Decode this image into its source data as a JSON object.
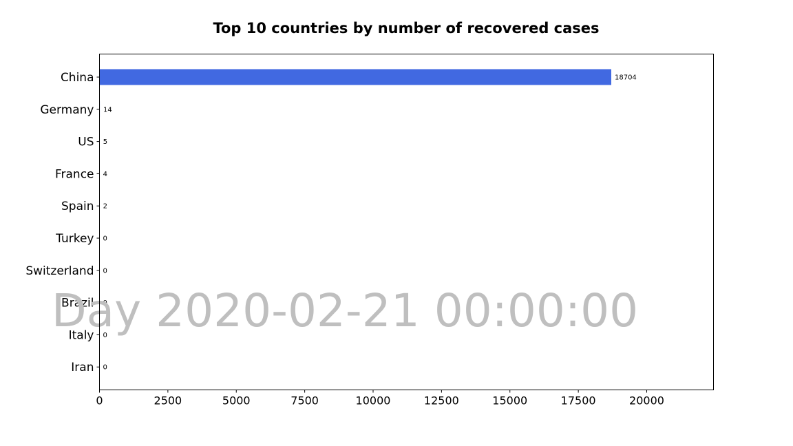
{
  "chart_data": {
    "type": "bar",
    "orientation": "horizontal",
    "title": "Top 10 countries by number of recovered cases",
    "categories": [
      "China",
      "Germany",
      "US",
      "France",
      "Spain",
      "Turkey",
      "Switzerland",
      "Brazil",
      "Italy",
      "Iran"
    ],
    "values": [
      18704,
      14,
      5,
      4,
      2,
      0,
      0,
      0,
      0,
      0
    ],
    "value_labels": [
      "18704",
      "14",
      "5",
      "4",
      "2",
      "0",
      "0",
      "0",
      "0",
      "0"
    ],
    "xlim": [
      0,
      22440
    ],
    "xticks": [
      0,
      2500,
      5000,
      7500,
      10000,
      12500,
      15000,
      17500,
      20000
    ],
    "xtick_labels": [
      "0",
      "2500",
      "5000",
      "7500",
      "10000",
      "12500",
      "15000",
      "17500",
      "20000"
    ],
    "xlabel": "",
    "ylabel": "",
    "grid": false,
    "bar_color": "#4169e1",
    "watermark": "Day 2020-02-21 00:00:00",
    "watermark_color": "#bfbfbf"
  }
}
